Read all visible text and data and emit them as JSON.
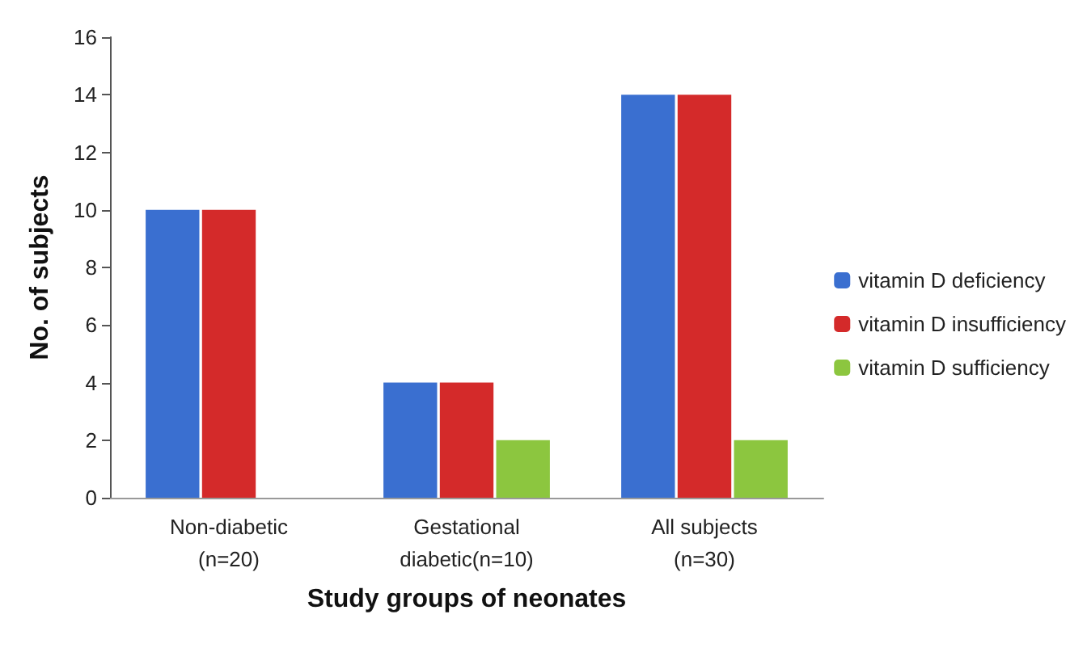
{
  "chart_data": {
    "type": "bar",
    "xlabel": "Study groups of neonates",
    "ylabel": "No. of subjects",
    "categories": [
      "Non-diabetic\n(n=20)",
      "Gestational\ndiabetic(n=10)",
      "All subjects\n(n=30)"
    ],
    "series": [
      {
        "name": "vitamin D deficiency",
        "color": "#3a6fd0",
        "values": [
          10,
          4,
          14
        ]
      },
      {
        "name": "vitamin D insufficiency",
        "color": "#d42a2a",
        "values": [
          10,
          4,
          14
        ]
      },
      {
        "name": "vitamin D sufficiency",
        "color": "#8cc63f",
        "values": [
          0,
          2,
          2
        ]
      }
    ],
    "ylim": [
      0,
      16
    ],
    "yticks": [
      0,
      2,
      4,
      6,
      8,
      10,
      12,
      14,
      16
    ],
    "grid": false,
    "legend": "right"
  }
}
